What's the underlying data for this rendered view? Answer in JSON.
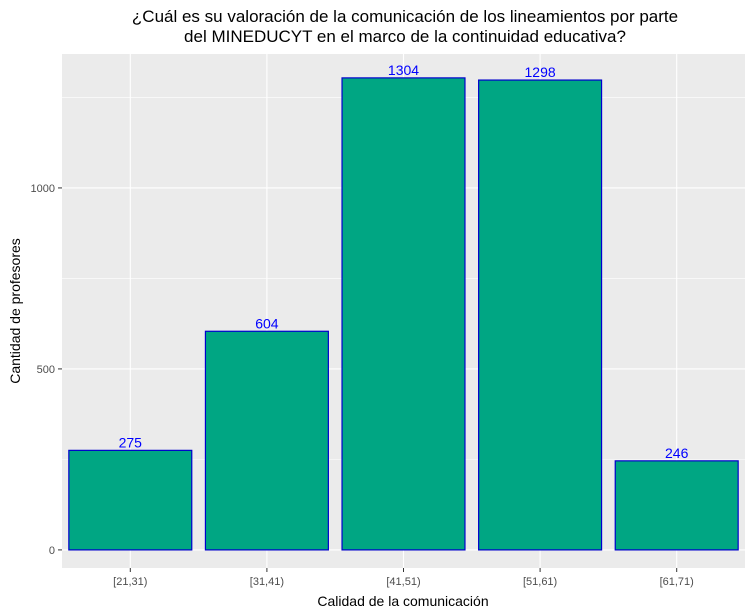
{
  "chart_data": {
    "type": "bar",
    "title_lines": [
      "¿Cuál es su valoración de la comunicación de los lineamientos por parte",
      "del MINEDUCYT en el marco de la continuidad educativa?"
    ],
    "xlabel": "Calidad de la comunicación",
    "ylabel": "Cantidad de profesores",
    "categories": [
      "[21,31)",
      "[31,41)",
      "[41,51)",
      "[51,61)",
      "[61,71)"
    ],
    "values": [
      275,
      604,
      1304,
      1298,
      246
    ],
    "data_labels": [
      "275",
      "604",
      "1304",
      "1298",
      "246"
    ],
    "yticks": [
      0,
      500,
      1000
    ],
    "ytick_labels": [
      "0",
      "500",
      "1000"
    ],
    "ylim": [
      -50,
      1370
    ],
    "grid": true,
    "legend": "none",
    "colors": {
      "bar_fill": "#00A683",
      "bar_outline": "#0000CD",
      "label_color": "#0000FF",
      "panel_bg": "#EBEBEB",
      "grid_major": "#FFFFFF"
    }
  }
}
